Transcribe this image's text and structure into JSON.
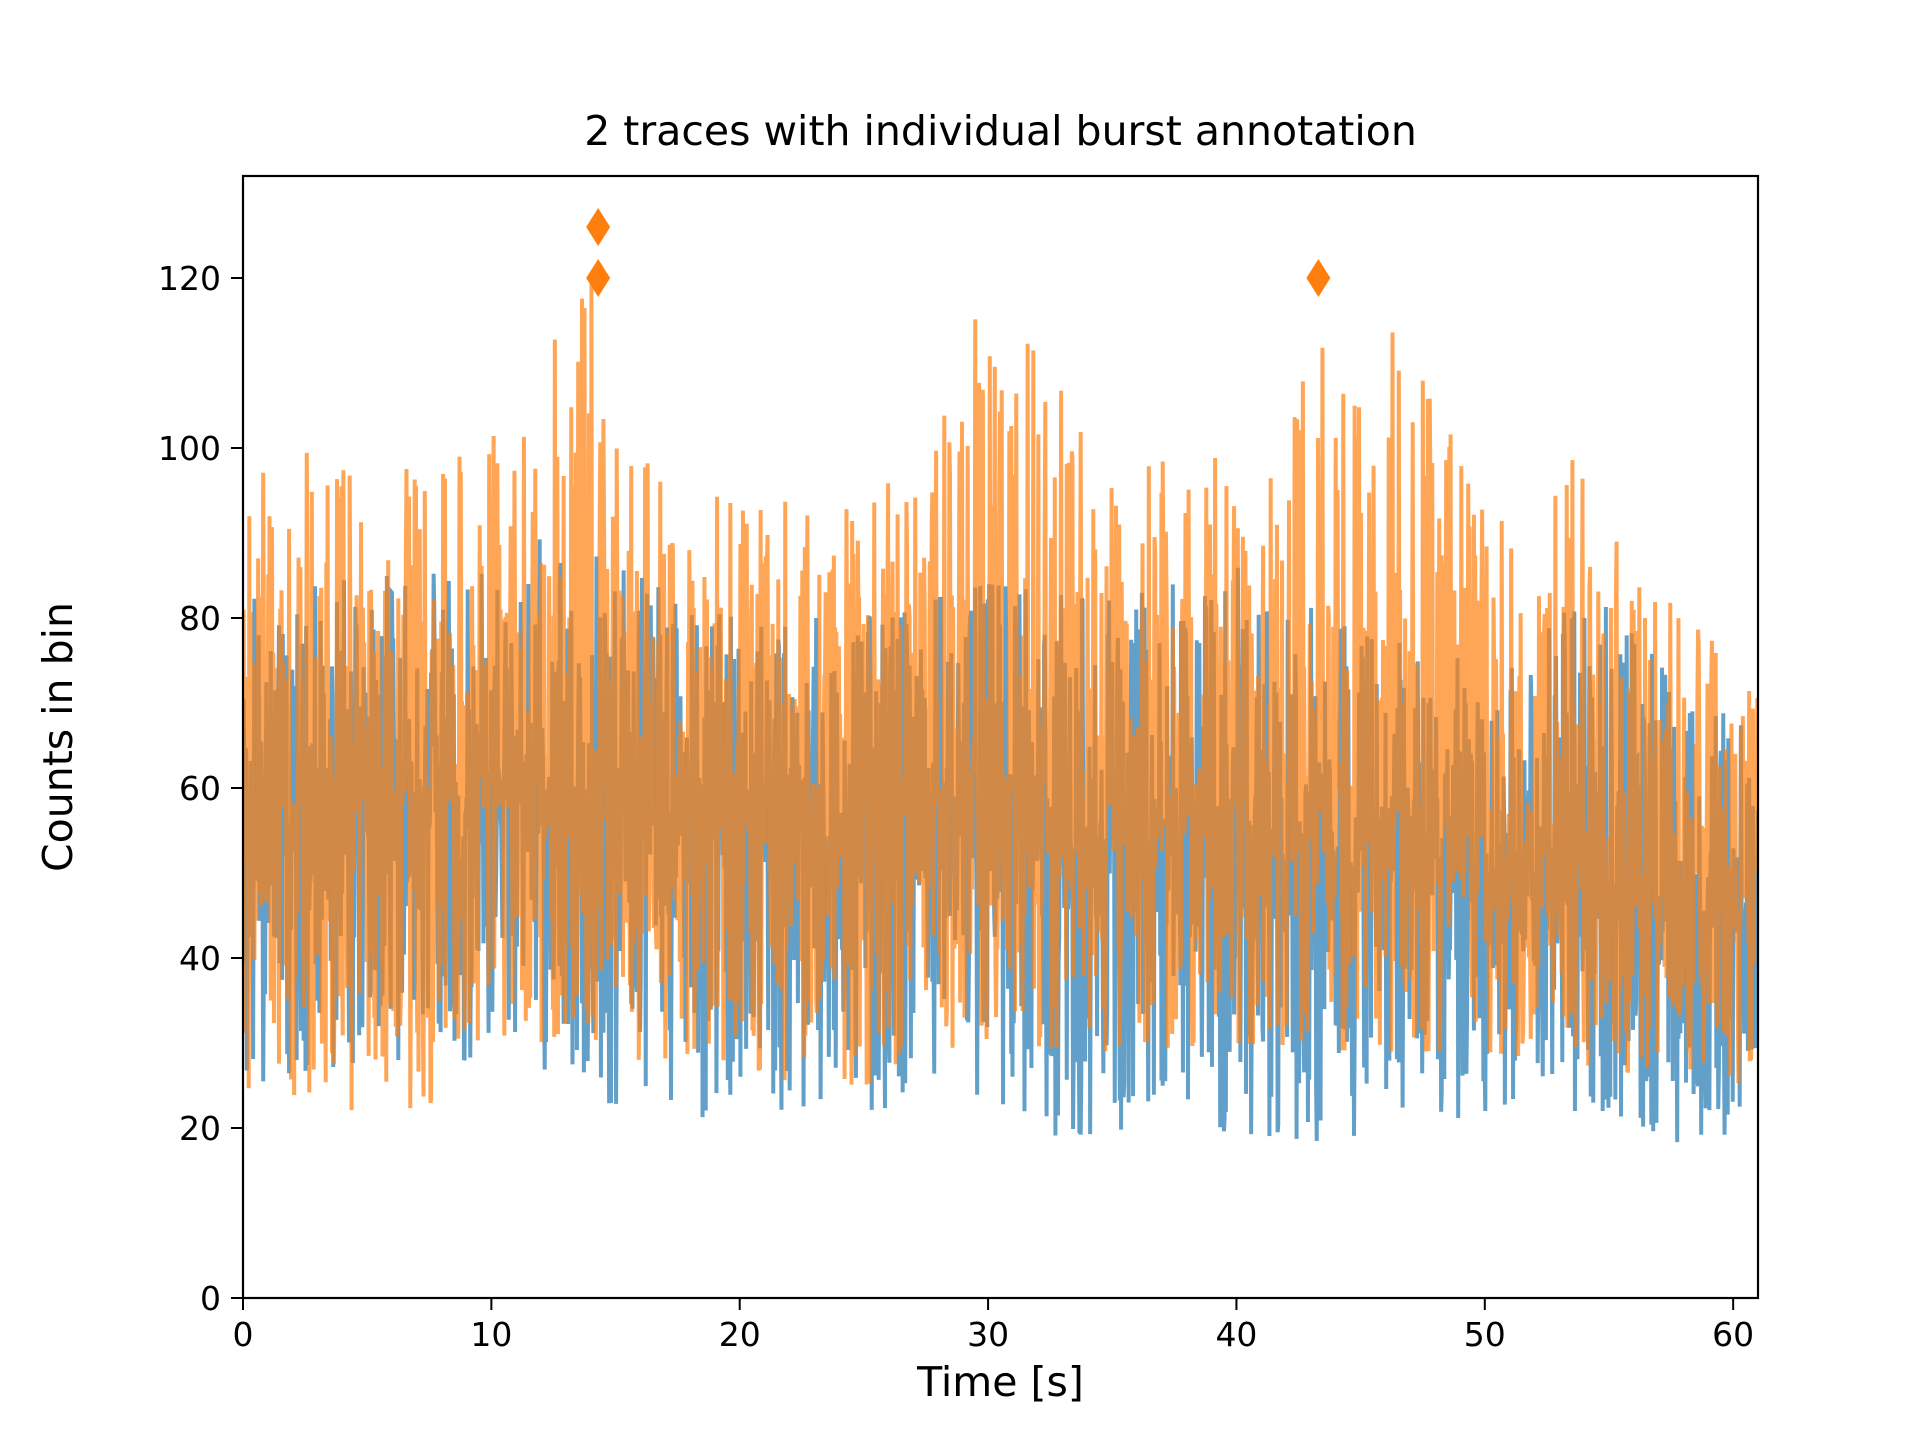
{
  "chart_data": {
    "type": "line",
    "title": "2 traces with individual burst annotation",
    "xlabel": "Time [s]",
    "ylabel": "Counts in bin",
    "xlim": [
      0,
      61
    ],
    "ylim": [
      0,
      132
    ],
    "xticks": [
      0,
      10,
      20,
      30,
      40,
      50,
      60
    ],
    "yticks": [
      0,
      20,
      40,
      60,
      80,
      100,
      120
    ],
    "grid": false,
    "legend": "none",
    "series": [
      {
        "color": "#1f77b4",
        "opacity": 0.7,
        "baseline": [
          [
            0,
            54
          ],
          [
            5,
            55
          ],
          [
            10,
            56
          ],
          [
            15,
            56
          ],
          [
            20,
            55
          ],
          [
            25,
            54
          ],
          [
            30,
            56
          ],
          [
            35,
            54
          ],
          [
            40,
            52
          ],
          [
            45,
            51
          ],
          [
            50,
            48
          ],
          [
            55,
            46
          ],
          [
            60,
            45
          ],
          [
            61,
            45
          ]
        ],
        "envelope_max": [
          [
            0,
            82
          ],
          [
            5,
            85
          ],
          [
            10,
            86
          ],
          [
            13,
            91
          ],
          [
            15,
            86
          ],
          [
            20,
            80
          ],
          [
            25,
            80
          ],
          [
            30,
            84
          ],
          [
            35,
            82
          ],
          [
            40,
            86
          ],
          [
            45,
            78
          ],
          [
            50,
            75
          ],
          [
            54.3,
            83
          ],
          [
            58,
            72
          ],
          [
            61,
            66
          ]
        ],
        "envelope_min": [
          [
            0,
            25
          ],
          [
            5,
            28
          ],
          [
            10,
            28
          ],
          [
            14.7,
            22
          ],
          [
            20,
            21
          ],
          [
            25,
            22
          ],
          [
            30,
            24
          ],
          [
            32.5,
            19
          ],
          [
            38.2,
            20
          ],
          [
            44.8,
            18
          ],
          [
            50,
            22
          ],
          [
            55,
            22
          ],
          [
            58,
            18
          ],
          [
            61,
            20
          ]
        ]
      },
      {
        "color": "#ff7f0e",
        "opacity": 0.7,
        "baseline": [
          [
            0,
            58
          ],
          [
            5,
            59
          ],
          [
            10,
            61
          ],
          [
            15,
            60
          ],
          [
            20,
            59
          ],
          [
            25,
            58
          ],
          [
            30,
            61
          ],
          [
            35,
            60
          ],
          [
            40,
            58
          ],
          [
            43,
            62
          ],
          [
            45,
            60
          ],
          [
            50,
            54
          ],
          [
            55,
            50
          ],
          [
            60,
            49
          ],
          [
            61,
            49
          ]
        ],
        "envelope_max": [
          [
            0,
            96
          ],
          [
            3,
            100
          ],
          [
            5,
            95
          ],
          [
            10,
            103
          ],
          [
            11.7,
            109
          ],
          [
            14.2,
            120
          ],
          [
            15,
            100
          ],
          [
            20,
            93
          ],
          [
            25,
            95
          ],
          [
            27.5,
            98
          ],
          [
            29.7,
            117
          ],
          [
            31.7,
            112
          ],
          [
            35,
            98
          ],
          [
            40,
            99
          ],
          [
            43.2,
            120
          ],
          [
            44,
            108
          ],
          [
            46.7,
            115
          ],
          [
            50,
            92
          ],
          [
            53.5,
            99
          ],
          [
            55,
            90
          ],
          [
            58,
            80
          ],
          [
            61,
            73
          ]
        ],
        "envelope_min": [
          [
            0,
            24
          ],
          [
            4.6,
            22
          ],
          [
            6.6,
            21
          ],
          [
            10,
            28
          ],
          [
            15,
            28
          ],
          [
            20,
            26
          ],
          [
            25,
            25
          ],
          [
            30,
            30
          ],
          [
            35,
            29
          ],
          [
            40,
            30
          ],
          [
            45,
            29
          ],
          [
            50,
            29
          ],
          [
            55,
            27
          ],
          [
            61,
            25
          ]
        ]
      }
    ],
    "burst_markers": [
      {
        "x": 14.3,
        "y": 126,
        "color": "#ff7f0e",
        "marker": "diamond"
      },
      {
        "x": 14.3,
        "y": 120,
        "color": "#ff7f0e",
        "marker": "diamond"
      },
      {
        "x": 43.3,
        "y": 120,
        "color": "#ff7f0e",
        "marker": "diamond"
      }
    ]
  }
}
